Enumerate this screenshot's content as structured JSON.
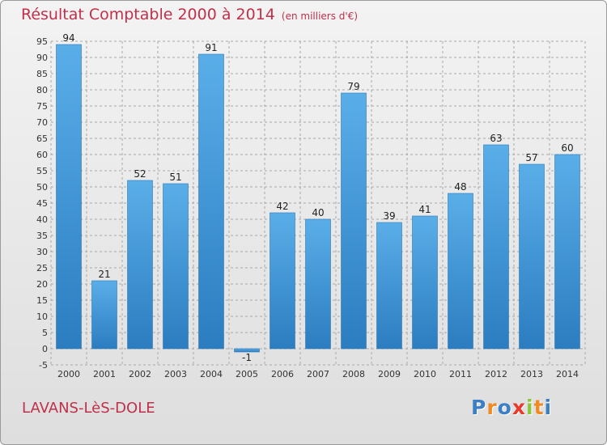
{
  "title": "Résultat Comptable 2000 à 2014",
  "subtitle": "(en milliers d'€)",
  "commune": "LAVANS-LèS-DOLE",
  "logo": {
    "letters": [
      "P",
      "r",
      "o",
      "x",
      "i",
      "t",
      "i"
    ],
    "colors": [
      "#3b7fc4",
      "#f08a24",
      "#3b7fc4",
      "#e63a2e",
      "#8cc63f",
      "#f08a24",
      "#3b7fc4"
    ]
  },
  "colors": {
    "bar": "#5aaee8",
    "bar_dark": "#2b7dc0",
    "grid": "#a8a8a8",
    "title": "#c0304a"
  },
  "chart_data": {
    "type": "bar",
    "title": "Résultat Comptable 2000 à 2014",
    "subtitle": "(en milliers d'€)",
    "categories": [
      "2000",
      "2001",
      "2002",
      "2003",
      "2004",
      "2005",
      "2006",
      "2007",
      "2008",
      "2009",
      "2010",
      "2011",
      "2012",
      "2013",
      "2014"
    ],
    "values": [
      94,
      21,
      52,
      51,
      91,
      -1,
      42,
      40,
      79,
      39,
      41,
      48,
      63,
      57,
      60
    ],
    "ylim": [
      -5,
      95
    ],
    "ytick_step": 5,
    "grid": true,
    "legend": "none"
  }
}
